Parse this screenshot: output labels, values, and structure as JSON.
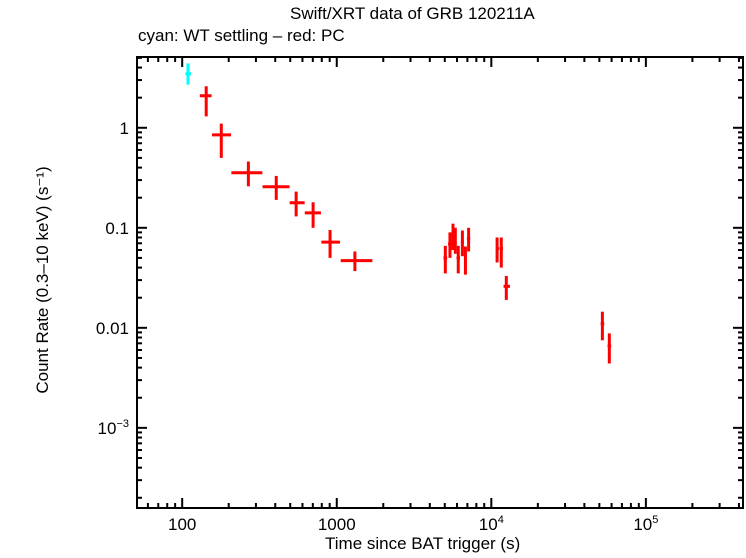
{
  "chart_data": {
    "type": "scatter",
    "title": "Swift/XRT data of GRB 120211A",
    "subtitle": "cyan: WT settling – red: PC",
    "xlabel": "Time since BAT trigger (s)",
    "ylabel": "Count Rate (0.3–10 keV) (s⁻¹)",
    "xscale": "log",
    "yscale": "log",
    "xlim": [
      51,
      425000
    ],
    "ylim": [
      0.000158,
      5.1
    ],
    "grid": false,
    "x_ticks": [
      {
        "value": 100,
        "label": "100",
        "sup": ""
      },
      {
        "value": 1000,
        "label": "1000",
        "sup": ""
      },
      {
        "value": 10000,
        "label": "10",
        "sup": "4"
      },
      {
        "value": 100000,
        "label": "10",
        "sup": "5"
      }
    ],
    "y_ticks": [
      {
        "value": 1,
        "label": "1",
        "sup": ""
      },
      {
        "value": 0.1,
        "label": "0.1",
        "sup": ""
      },
      {
        "value": 0.01,
        "label": "0.01",
        "sup": ""
      },
      {
        "value": 0.001,
        "label": "10",
        "sup": "−3"
      }
    ],
    "series": [
      {
        "mode": "WT settling",
        "color": "#00ffff",
        "points": [
          {
            "t": 109,
            "t_lo": 105,
            "t_hi": 114,
            "rate": 3.47,
            "rate_lo": 2.7,
            "rate_hi": 4.4
          }
        ]
      },
      {
        "mode": "PC",
        "color": "#ff0000",
        "points": [
          {
            "t": 143,
            "t_lo": 130,
            "t_hi": 155,
            "rate": 2.09,
            "rate_lo": 1.3,
            "rate_hi": 2.6
          },
          {
            "t": 179,
            "t_lo": 156,
            "t_hi": 207,
            "rate": 0.85,
            "rate_lo": 0.5,
            "rate_hi": 1.1
          },
          {
            "t": 268,
            "t_lo": 208,
            "t_hi": 330,
            "rate": 0.355,
            "rate_lo": 0.26,
            "rate_hi": 0.46
          },
          {
            "t": 406,
            "t_lo": 331,
            "t_hi": 495,
            "rate": 0.257,
            "rate_lo": 0.19,
            "rate_hi": 0.33
          },
          {
            "t": 546,
            "t_lo": 496,
            "t_hi": 620,
            "rate": 0.178,
            "rate_lo": 0.13,
            "rate_hi": 0.23
          },
          {
            "t": 703,
            "t_lo": 621,
            "t_hi": 790,
            "rate": 0.141,
            "rate_lo": 0.1,
            "rate_hi": 0.18
          },
          {
            "t": 905,
            "t_lo": 795,
            "t_hi": 1050,
            "rate": 0.072,
            "rate_lo": 0.05,
            "rate_hi": 0.095
          },
          {
            "t": 1310,
            "t_lo": 1060,
            "t_hi": 1700,
            "rate": 0.047,
            "rate_lo": 0.037,
            "rate_hi": 0.058
          },
          {
            "t": 5040,
            "t_lo": 4900,
            "t_hi": 5180,
            "rate": 0.05,
            "rate_lo": 0.035,
            "rate_hi": 0.066
          },
          {
            "t": 5400,
            "t_lo": 5250,
            "t_hi": 5550,
            "rate": 0.069,
            "rate_lo": 0.05,
            "rate_hi": 0.09
          },
          {
            "t": 5650,
            "t_lo": 5550,
            "t_hi": 5800,
            "rate": 0.082,
            "rate_lo": 0.06,
            "rate_hi": 0.11
          },
          {
            "t": 5850,
            "t_lo": 5750,
            "t_hi": 5950,
            "rate": 0.075,
            "rate_lo": 0.055,
            "rate_hi": 0.1
          },
          {
            "t": 6110,
            "t_lo": 5950,
            "t_hi": 6270,
            "rate": 0.05,
            "rate_lo": 0.035,
            "rate_hi": 0.066
          },
          {
            "t": 6500,
            "t_lo": 6350,
            "t_hi": 6650,
            "rate": 0.072,
            "rate_lo": 0.052,
            "rate_hi": 0.094
          },
          {
            "t": 6800,
            "t_lo": 6650,
            "t_hi": 6950,
            "rate": 0.049,
            "rate_lo": 0.034,
            "rate_hi": 0.065
          },
          {
            "t": 7130,
            "t_lo": 6950,
            "t_hi": 7300,
            "rate": 0.078,
            "rate_lo": 0.058,
            "rate_hi": 0.1
          },
          {
            "t": 10900,
            "t_lo": 10700,
            "t_hi": 11200,
            "rate": 0.062,
            "rate_lo": 0.045,
            "rate_hi": 0.08
          },
          {
            "t": 11600,
            "t_lo": 11300,
            "t_hi": 11900,
            "rate": 0.062,
            "rate_lo": 0.04,
            "rate_hi": 0.08
          },
          {
            "t": 12500,
            "t_lo": 12000,
            "t_hi": 13200,
            "rate": 0.026,
            "rate_lo": 0.019,
            "rate_hi": 0.033
          },
          {
            "t": 52300,
            "t_lo": 51000,
            "t_hi": 53800,
            "rate": 0.011,
            "rate_lo": 0.0075,
            "rate_hi": 0.0145
          },
          {
            "t": 58000,
            "t_lo": 56500,
            "t_hi": 59600,
            "rate": 0.0066,
            "rate_lo": 0.0044,
            "rate_hi": 0.0088
          }
        ]
      }
    ]
  }
}
